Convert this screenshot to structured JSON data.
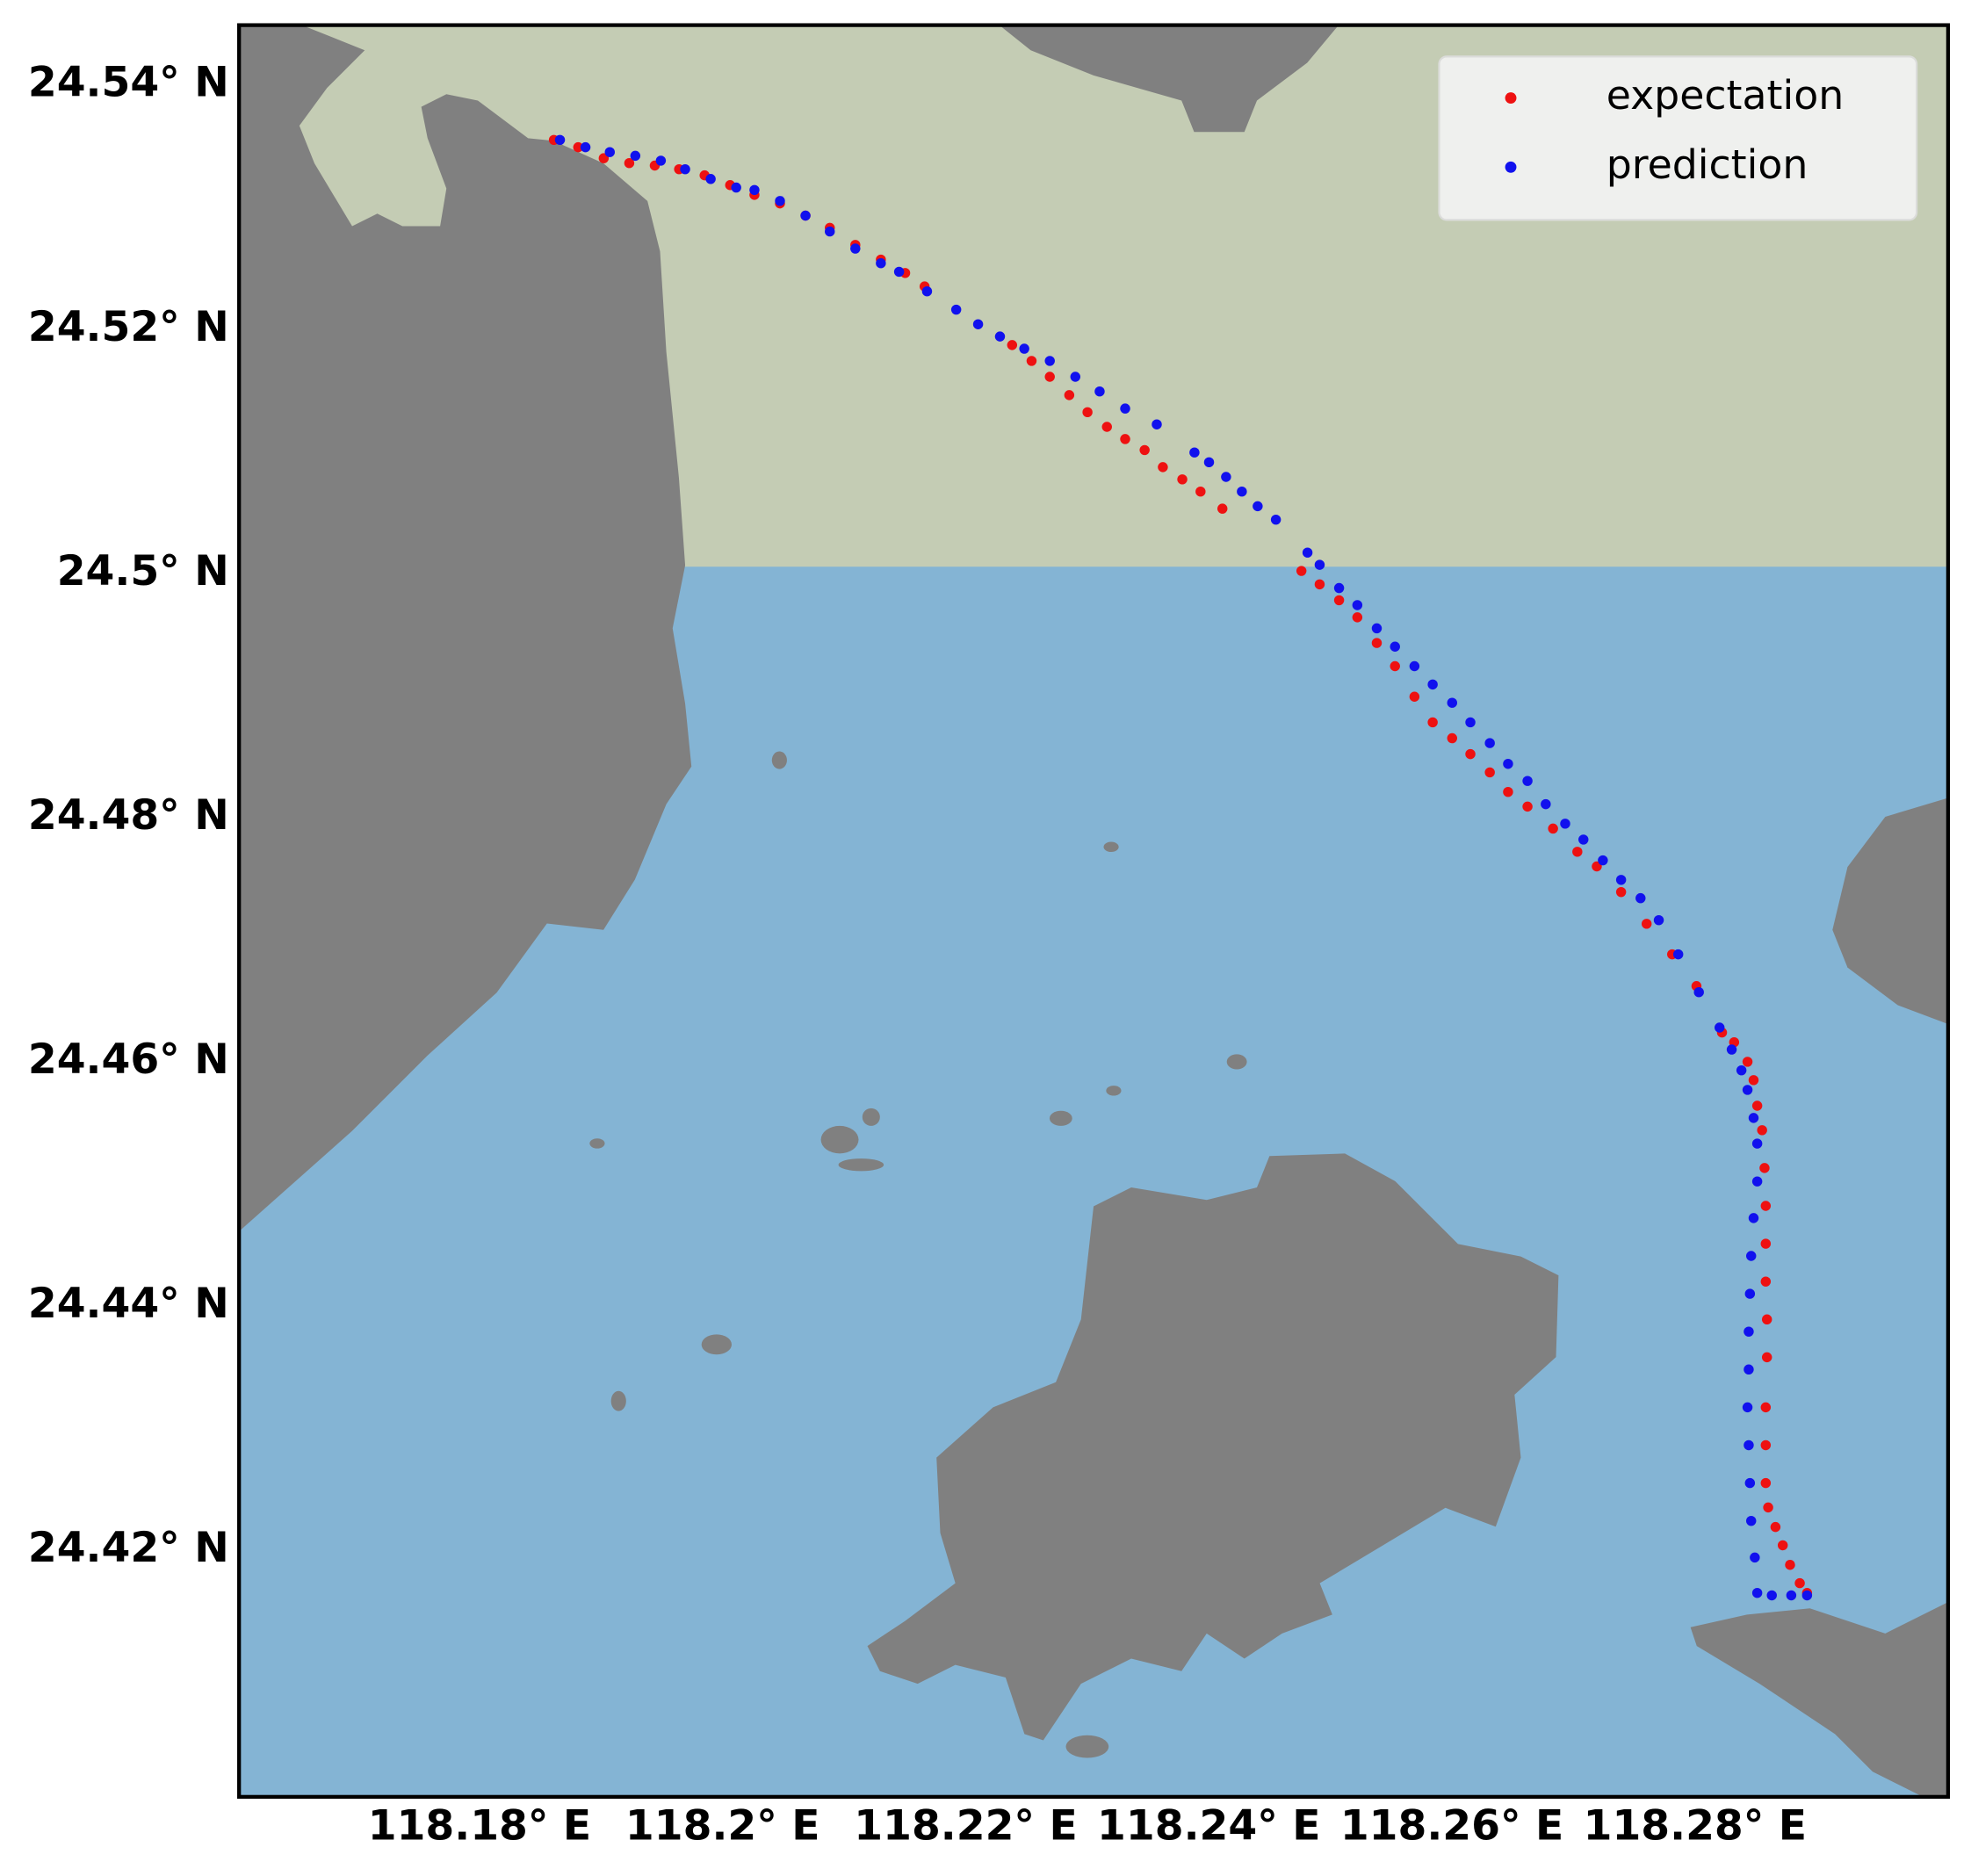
{
  "chart_data": {
    "type": "scatter",
    "legend": "upper right",
    "xlim": [
      118.1597,
      118.3003
    ],
    "ylim": [
      24.3998,
      24.5449
    ],
    "xticks": [
      {
        "value": 118.18,
        "label": "118.18° E"
      },
      {
        "value": 118.2,
        "label": "118.2° E"
      },
      {
        "value": 118.22,
        "label": "118.22° E"
      },
      {
        "value": 118.24,
        "label": "118.24° E"
      },
      {
        "value": 118.26,
        "label": "118.26° E"
      },
      {
        "value": 118.28,
        "label": "118.28° E"
      }
    ],
    "yticks": [
      {
        "value": 24.42,
        "label": "24.42° N"
      },
      {
        "value": 24.44,
        "label": "24.44° N"
      },
      {
        "value": 24.46,
        "label": "24.46° N"
      },
      {
        "value": 24.48,
        "label": "24.48° N"
      },
      {
        "value": 24.5,
        "label": "24.5° N"
      },
      {
        "value": 24.52,
        "label": "24.52° N"
      },
      {
        "value": 24.54,
        "label": "24.54° N"
      }
    ],
    "series": [
      {
        "name": "expectation",
        "color": "#ee1111",
        "x": [
          118.1856,
          118.1876,
          118.1897,
          118.1918,
          118.1939,
          118.1959,
          118.198,
          118.2001,
          118.2021,
          118.2042,
          118.2063,
          118.2083,
          118.2104,
          118.2125,
          118.2145,
          118.2161,
          118.2233,
          118.2249,
          118.2264,
          118.228,
          118.2295,
          118.2311,
          118.2326,
          118.2342,
          118.2357,
          118.2373,
          118.2388,
          118.2406,
          118.2471,
          118.2486,
          118.2502,
          118.2517,
          118.2533,
          118.2548,
          118.2564,
          118.2579,
          118.2595,
          118.261,
          118.2626,
          118.2641,
          118.2657,
          118.2678,
          118.2698,
          118.2714,
          118.2734,
          118.2755,
          118.2776,
          118.2796,
          118.2817,
          118.2827,
          118.2838,
          118.2843,
          118.2846,
          118.285,
          118.2852,
          118.2853,
          118.2853,
          118.2853,
          118.2854,
          118.2854,
          118.2853,
          118.2853,
          118.2853,
          118.2855,
          118.2861,
          118.2867,
          118.2873,
          118.2881,
          118.2887
        ],
        "values": [
          24.5355,
          24.5349,
          24.534,
          24.5336,
          24.5334,
          24.5331,
          24.5326,
          24.5318,
          24.531,
          24.5303,
          24.5293,
          24.5283,
          24.5269,
          24.5257,
          24.5246,
          24.5235,
          24.5187,
          24.5174,
          24.5161,
          24.5146,
          24.5132,
          24.512,
          24.511,
          24.5101,
          24.5087,
          24.5077,
          24.5067,
          24.5053,
          24.5002,
          24.4991,
          24.4978,
          24.4964,
          24.4943,
          24.4924,
          24.4899,
          24.4878,
          24.4865,
          24.4852,
          24.4837,
          24.4821,
          24.4809,
          24.4791,
          24.4772,
          24.476,
          24.4739,
          24.4713,
          24.4688,
          24.4662,
          24.4624,
          24.4616,
          24.46,
          24.4585,
          24.4564,
          24.4544,
          24.4513,
          24.4482,
          24.4451,
          24.442,
          24.4389,
          24.4358,
          24.4317,
          24.4286,
          24.4255,
          24.4235,
          24.4219,
          24.4204,
          24.4188,
          24.4173,
          24.4165
        ]
      },
      {
        "name": "prediction",
        "color": "#1111ee",
        "x": [
          118.1861,
          118.1882,
          118.1902,
          118.1923,
          118.1944,
          118.1964,
          118.1985,
          118.2006,
          118.2021,
          118.2042,
          118.2063,
          118.2083,
          118.2104,
          118.2125,
          118.214,
          118.2163,
          118.2187,
          118.2205,
          118.2223,
          118.2243,
          118.2264,
          118.2285,
          118.2305,
          118.2326,
          118.2352,
          118.2383,
          118.2395,
          118.2409,
          118.2422,
          118.2435,
          118.245,
          118.2476,
          118.2486,
          118.2502,
          118.2517,
          118.2533,
          118.2548,
          118.2564,
          118.2579,
          118.2595,
          118.261,
          118.2626,
          118.2641,
          118.2657,
          118.2672,
          118.2688,
          118.2703,
          118.2719,
          118.2734,
          118.275,
          118.2765,
          118.2781,
          118.2798,
          118.2815,
          118.2825,
          118.2833,
          118.2838,
          118.2843,
          118.2846,
          118.2846,
          118.2843,
          118.2841,
          118.284,
          118.2839,
          118.2839,
          118.2838,
          118.2839,
          118.284,
          118.2841,
          118.2844,
          118.2846,
          118.2858,
          118.2874,
          118.2887
        ],
        "values": [
          24.5355,
          24.5349,
          24.5345,
          24.5342,
          24.5338,
          24.5331,
          24.5323,
          24.5316,
          24.5314,
          24.5305,
          24.5293,
          24.528,
          24.5266,
          24.5254,
          24.5247,
          24.5231,
          24.5216,
          24.5204,
          24.5194,
          24.5184,
          24.5174,
          24.5161,
          24.5149,
          24.5135,
          24.5122,
          24.5099,
          24.5091,
          24.5079,
          24.5067,
          24.5055,
          24.5044,
          24.5017,
          24.5007,
          24.4988,
          24.4974,
          24.4955,
          24.494,
          24.4924,
          24.4909,
          24.4894,
          24.4878,
          24.4861,
          24.4844,
          24.483,
          24.4811,
          24.4795,
          24.4782,
          24.4765,
          24.4749,
          24.4734,
          24.4716,
          24.4688,
          24.4657,
          24.4628,
          24.461,
          24.4593,
          24.4577,
          24.4554,
          24.4533,
          24.4502,
          24.4472,
          24.4441,
          24.441,
          24.4379,
          24.4348,
          24.4317,
          24.4286,
          24.4255,
          24.4224,
          24.4194,
          24.4165,
          24.4163,
          24.4163,
          24.4163
        ]
      }
    ]
  }
}
